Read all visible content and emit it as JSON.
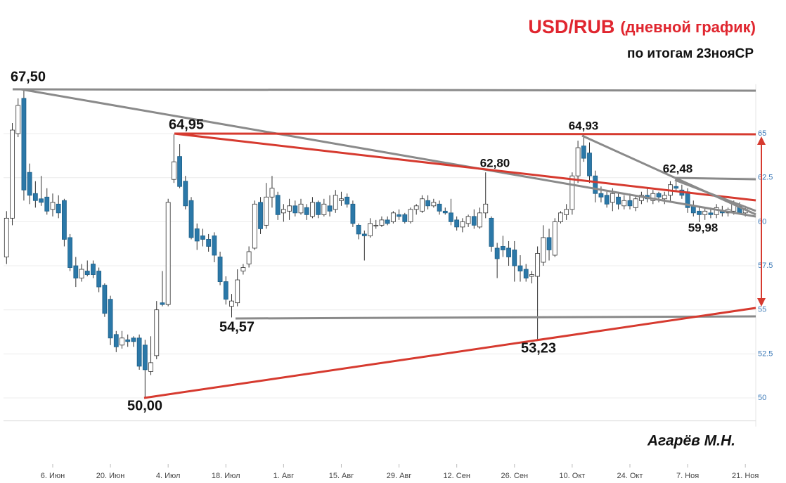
{
  "chart_data": {
    "type": "candlestick",
    "title": "USD/RUB",
    "title_note": "(дневной график)",
    "subtitle": "по итогам 23нояСР",
    "author": "Агарёв М.Н.",
    "annotations": [
      "67,50",
      "64,95",
      "54,57",
      "50,00",
      "53,23",
      "62,80",
      "64,93",
      "62,48",
      "59,98"
    ],
    "up_color": "#ffffff",
    "down_color": "#2b78a8",
    "wick_color": "#333333",
    "ylim": [
      48.7,
      68.6
    ],
    "yticks": [
      50,
      52.5,
      55,
      57.5,
      60,
      62.5,
      65
    ],
    "grid": true,
    "categories": [
      null,
      null,
      null,
      null,
      null,
      null,
      null,
      null,
      "6. Июн",
      null,
      null,
      null,
      null,
      null,
      null,
      null,
      null,
      null,
      "20. Июн",
      null,
      null,
      null,
      null,
      null,
      null,
      null,
      null,
      null,
      "4. Июл",
      null,
      null,
      null,
      null,
      null,
      null,
      null,
      null,
      null,
      "18. Июл",
      null,
      null,
      null,
      null,
      null,
      null,
      null,
      null,
      null,
      "1. Авг",
      null,
      null,
      null,
      null,
      null,
      null,
      null,
      null,
      null,
      "15. Авг",
      null,
      null,
      null,
      null,
      null,
      null,
      null,
      null,
      null,
      "29. Авг",
      null,
      null,
      null,
      null,
      null,
      null,
      null,
      null,
      null,
      "12. Сен",
      null,
      null,
      null,
      null,
      null,
      null,
      null,
      null,
      null,
      "26. Сен",
      null,
      null,
      null,
      null,
      null,
      null,
      null,
      null,
      null,
      "10. Окт",
      null,
      null,
      null,
      null,
      null,
      null,
      null,
      null,
      null,
      "24. Окт",
      null,
      null,
      null,
      null,
      null,
      null,
      null,
      null,
      null,
      "7. Ноя",
      null,
      null,
      null,
      null,
      null,
      null,
      null,
      null,
      null,
      "21. Ноя"
    ],
    "candles": [
      [
        58.0,
        60.6,
        57.6,
        60.2
      ],
      [
        60.2,
        65.6,
        59.8,
        65.2
      ],
      [
        65.0,
        67.0,
        64.8,
        66.6
      ],
      [
        67.0,
        67.5,
        61.2,
        61.8
      ],
      [
        62.8,
        63.3,
        61.0,
        61.5
      ],
      [
        61.6,
        62.3,
        60.8,
        61.2
      ],
      [
        61.3,
        62.6,
        60.9,
        61.1
      ],
      [
        61.4,
        61.9,
        60.4,
        60.6
      ],
      [
        60.7,
        61.6,
        60.3,
        61.1
      ],
      [
        61.0,
        61.5,
        60.2,
        60.5
      ],
      [
        61.2,
        61.3,
        58.6,
        59.0
      ],
      [
        59.1,
        59.3,
        57.2,
        57.4
      ],
      [
        57.5,
        58.0,
        56.3,
        56.8
      ],
      [
        56.8,
        57.6,
        56.6,
        57.3
      ],
      [
        57.2,
        57.8,
        56.9,
        57.0
      ],
      [
        57.6,
        57.8,
        56.8,
        57.0
      ],
      [
        57.2,
        57.4,
        56.0,
        56.3
      ],
      [
        56.4,
        56.5,
        54.6,
        54.8
      ],
      [
        55.6,
        55.8,
        53.0,
        53.4
      ],
      [
        53.6,
        53.8,
        52.6,
        52.9
      ],
      [
        53.0,
        53.8,
        52.8,
        53.4
      ],
      [
        53.3,
        53.6,
        52.9,
        53.2
      ],
      [
        53.4,
        53.5,
        52.9,
        53.2
      ],
      [
        53.4,
        53.6,
        51.6,
        51.8
      ],
      [
        53.0,
        53.3,
        50.0,
        51.6
      ],
      [
        51.5,
        53.5,
        51.3,
        52.0
      ],
      [
        52.4,
        55.5,
        52.2,
        55.0
      ],
      [
        55.4,
        57.2,
        55.2,
        55.3
      ],
      [
        55.3,
        61.3,
        55.2,
        61.1
      ],
      [
        62.4,
        64.95,
        62.2,
        63.4
      ],
      [
        63.7,
        64.4,
        61.9,
        62.0
      ],
      [
        62.3,
        62.6,
        60.7,
        60.9
      ],
      [
        61.2,
        61.4,
        59.0,
        59.1
      ],
      [
        59.6,
        59.9,
        58.4,
        58.9
      ],
      [
        59.2,
        59.6,
        58.6,
        59.0
      ],
      [
        59.0,
        59.3,
        58.3,
        58.6
      ],
      [
        59.2,
        59.4,
        57.7,
        58.1
      ],
      [
        58.0,
        58.3,
        56.4,
        56.6
      ],
      [
        56.6,
        56.9,
        55.3,
        55.6
      ],
      [
        55.2,
        55.9,
        54.57,
        55.5
      ],
      [
        55.4,
        57.3,
        55.2,
        56.7
      ],
      [
        57.2,
        57.6,
        57.0,
        57.4
      ],
      [
        57.6,
        58.6,
        57.4,
        58.3
      ],
      [
        58.5,
        61.2,
        58.4,
        61.0
      ],
      [
        61.1,
        61.4,
        59.3,
        59.6
      ],
      [
        59.8,
        62.2,
        59.6,
        61.4
      ],
      [
        61.4,
        62.6,
        60.8,
        61.9
      ],
      [
        61.5,
        61.7,
        60.1,
        60.4
      ],
      [
        60.5,
        61.0,
        60.0,
        60.7
      ],
      [
        60.6,
        61.3,
        60.1,
        60.9
      ],
      [
        60.9,
        61.2,
        60.3,
        60.5
      ],
      [
        60.5,
        61.3,
        60.4,
        61.0
      ],
      [
        60.8,
        61.0,
        60.1,
        60.4
      ],
      [
        60.3,
        61.4,
        60.2,
        61.1
      ],
      [
        61.1,
        61.2,
        60.2,
        60.4
      ],
      [
        60.4,
        61.3,
        60.3,
        61.0
      ],
      [
        60.9,
        61.5,
        60.3,
        60.6
      ],
      [
        60.7,
        61.8,
        60.5,
        61.5
      ],
      [
        61.2,
        61.7,
        60.9,
        61.3
      ],
      [
        61.4,
        61.6,
        60.8,
        61.0
      ],
      [
        61.0,
        61.2,
        59.7,
        59.9
      ],
      [
        59.8,
        59.9,
        59.0,
        59.3
      ],
      [
        59.3,
        59.5,
        57.8,
        59.2
      ],
      [
        59.2,
        60.2,
        59.1,
        59.9
      ],
      [
        59.8,
        60.1,
        59.6,
        59.8
      ],
      [
        59.8,
        60.3,
        59.7,
        60.1
      ],
      [
        60.1,
        60.3,
        59.8,
        59.9
      ],
      [
        60.0,
        60.6,
        59.9,
        60.5
      ],
      [
        60.4,
        60.7,
        60.1,
        60.3
      ],
      [
        60.4,
        60.5,
        59.9,
        60.0
      ],
      [
        60.0,
        60.8,
        59.9,
        60.7
      ],
      [
        60.7,
        61.0,
        60.4,
        60.9
      ],
      [
        60.6,
        61.5,
        60.5,
        61.3
      ],
      [
        61.2,
        61.5,
        60.7,
        60.9
      ],
      [
        60.9,
        61.3,
        60.8,
        61.1
      ],
      [
        61.0,
        61.2,
        60.4,
        60.6
      ],
      [
        60.6,
        60.8,
        60.4,
        60.5
      ],
      [
        60.5,
        61.3,
        59.8,
        60.0
      ],
      [
        60.1,
        60.3,
        59.5,
        59.7
      ],
      [
        59.7,
        60.2,
        59.4,
        60.0
      ],
      [
        59.9,
        60.4,
        59.7,
        60.3
      ],
      [
        60.3,
        60.7,
        59.6,
        59.8
      ],
      [
        59.7,
        60.8,
        59.6,
        60.5
      ],
      [
        60.5,
        62.8,
        60.2,
        61.0
      ],
      [
        60.2,
        60.3,
        58.3,
        58.6
      ],
      [
        58.5,
        58.8,
        56.8,
        57.9
      ],
      [
        58.6,
        59.2,
        58.0,
        58.4
      ],
      [
        58.5,
        58.9,
        57.5,
        58.0
      ],
      [
        58.4,
        58.9,
        56.6,
        57.5
      ],
      [
        57.5,
        58.1,
        56.6,
        57.2
      ],
      [
        57.3,
        57.6,
        56.6,
        56.8
      ],
      [
        56.9,
        57.2,
        56.5,
        57.0
      ],
      [
        56.9,
        58.6,
        53.23,
        58.2
      ],
      [
        57.7,
        59.8,
        57.5,
        59.1
      ],
      [
        59.1,
        59.6,
        57.8,
        58.4
      ],
      [
        58.1,
        60.2,
        58.0,
        60.0
      ],
      [
        60.0,
        60.6,
        59.9,
        60.5
      ],
      [
        60.4,
        61.0,
        60.1,
        60.7
      ],
      [
        60.7,
        62.8,
        60.4,
        62.6
      ],
      [
        62.6,
        64.6,
        62.2,
        64.2
      ],
      [
        64.3,
        64.93,
        63.4,
        63.6
      ],
      [
        63.9,
        64.5,
        62.2,
        62.6
      ],
      [
        62.6,
        62.9,
        61.1,
        61.6
      ],
      [
        61.6,
        62.0,
        61.1,
        61.4
      ],
      [
        61.5,
        61.7,
        60.8,
        61.0
      ],
      [
        61.1,
        61.9,
        60.6,
        61.6
      ],
      [
        61.4,
        61.7,
        60.7,
        61.0
      ],
      [
        60.9,
        61.5,
        60.7,
        61.2
      ],
      [
        61.2,
        61.6,
        60.7,
        60.9
      ],
      [
        60.8,
        61.5,
        60.6,
        61.3
      ],
      [
        61.2,
        61.7,
        61.0,
        61.5
      ],
      [
        61.5,
        61.9,
        61.1,
        61.3
      ],
      [
        61.2,
        61.8,
        61.0,
        61.6
      ],
      [
        61.6,
        61.7,
        61.1,
        61.4
      ],
      [
        61.3,
        61.7,
        61.0,
        61.5
      ],
      [
        61.5,
        62.3,
        61.1,
        62.1
      ],
      [
        62.0,
        62.48,
        61.7,
        61.9
      ],
      [
        61.8,
        62.1,
        61.3,
        61.5
      ],
      [
        61.7,
        61.9,
        60.5,
        60.8
      ],
      [
        60.9,
        61.2,
        60.3,
        60.5
      ],
      [
        60.6,
        60.8,
        59.98,
        60.4
      ],
      [
        60.4,
        60.8,
        60.1,
        60.6
      ],
      [
        60.5,
        60.8,
        60.2,
        60.4
      ],
      [
        60.4,
        61.0,
        60.2,
        60.8
      ],
      [
        60.6,
        60.9,
        60.3,
        60.5
      ],
      [
        60.5,
        60.8,
        60.3,
        60.7
      ],
      [
        60.6,
        61.2,
        60.4,
        61.0
      ],
      [
        60.9,
        61.1,
        60.4,
        60.5
      ],
      [
        60.5,
        60.9,
        60.3,
        60.7
      ]
    ]
  }
}
